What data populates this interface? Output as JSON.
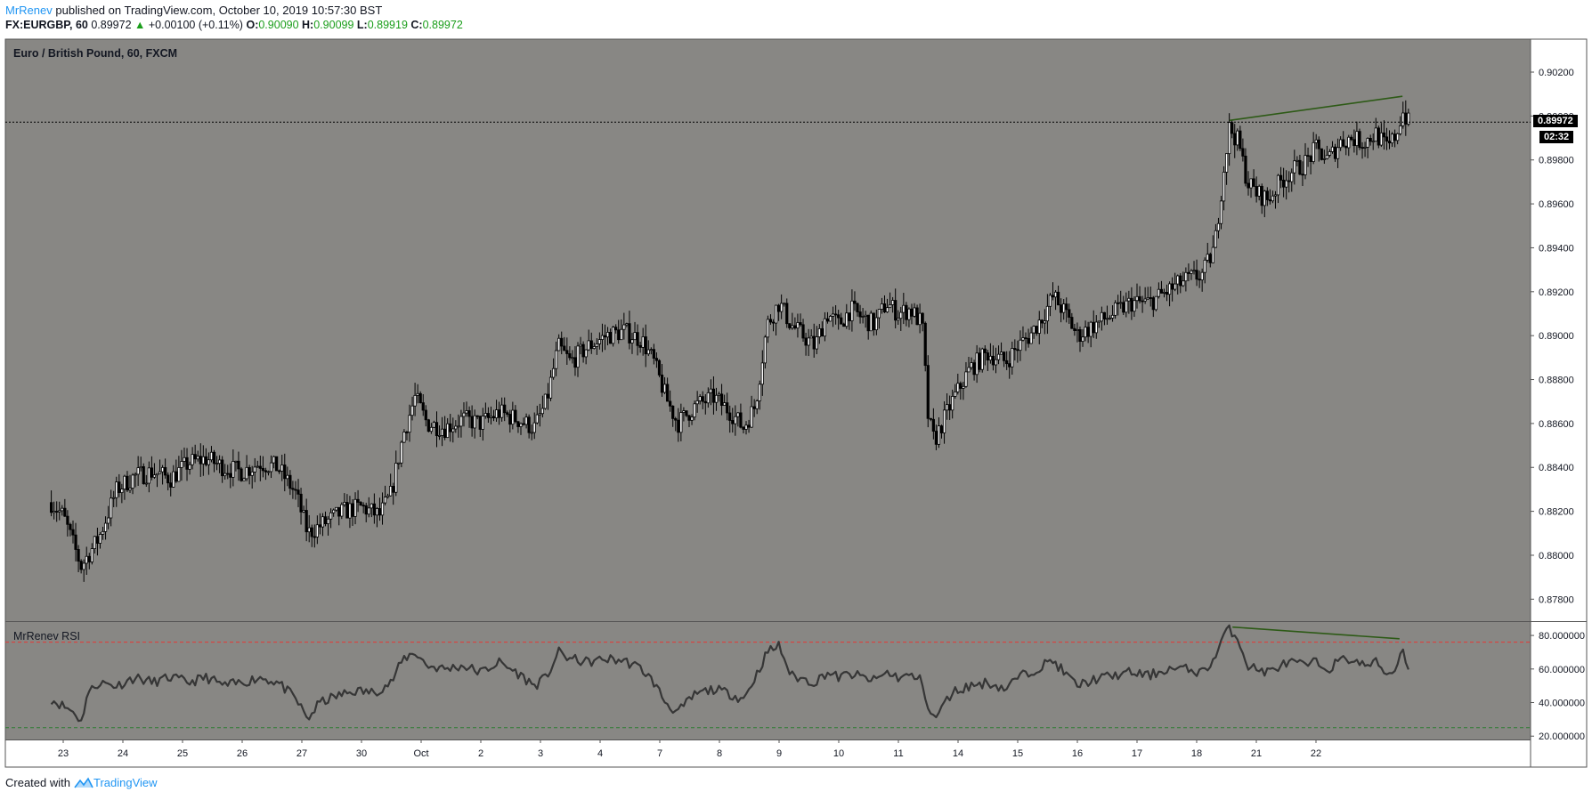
{
  "header": {
    "author": "MrRenev",
    "published_text": "published on TradingView.com, October 10, 2019 10:57:30 BST"
  },
  "quote": {
    "symbol": "FX:EURGBP, 60",
    "last": "0.89972",
    "arrow": "▲",
    "change": "+0.00100 (+0.11%)",
    "open_label": "O:",
    "open": "0.90090",
    "high_label": "H:",
    "high": "0.90099",
    "low_label": "L:",
    "low": "0.89919",
    "close_label": "C:",
    "close": "0.89972"
  },
  "main_pane": {
    "title": "Euro / British Pound, 60, FXCM",
    "last_price_label": "0.89972",
    "countdown_label": "02:32"
  },
  "rsi_pane": {
    "title": "MrRenev RSI"
  },
  "footer": {
    "created_with": "Created with",
    "brand": "TradingView"
  },
  "colors": {
    "pane_background": "#888784",
    "candle": "#000000",
    "divergence_line": "#2d5a16",
    "rsi_line": "#363636",
    "overbought_line": "#e53935",
    "oversold_line": "#2e7d32",
    "brand_blue": "#2196f3"
  },
  "chart_data": [
    {
      "type": "candlestick",
      "title": "Euro / British Pound, 60, FXCM",
      "y_tick_labels": [
        "0.90200",
        "0.90000",
        "0.89800",
        "0.89600",
        "0.89400",
        "0.89200",
        "0.89000",
        "0.88800",
        "0.88600",
        "0.88400",
        "0.88200",
        "0.88000",
        "0.87800"
      ],
      "ylim": [
        0.877,
        0.9035
      ],
      "x_tick_labels": [
        "23",
        "24",
        "25",
        "26",
        "27",
        "30",
        "Oct",
        "2",
        "3",
        "4",
        "7",
        "8",
        "9",
        "10",
        "11",
        "14",
        "15",
        "16",
        "17",
        "18",
        "21",
        "22"
      ],
      "last_price": 0.89972,
      "series": [
        {
          "values": [
            [
              -0.2,
              0.8824
            ],
            [
              0.0,
              0.8818
            ],
            [
              0.3,
              0.8795
            ],
            [
              0.6,
              0.8808
            ],
            [
              0.9,
              0.883
            ],
            [
              1.2,
              0.8836
            ],
            [
              1.5,
              0.8838
            ],
            [
              1.8,
              0.8835
            ],
            [
              2.1,
              0.8842
            ],
            [
              2.4,
              0.8844
            ],
            [
              2.7,
              0.884
            ],
            [
              3.0,
              0.8838
            ],
            [
              3.3,
              0.8842
            ],
            [
              3.6,
              0.884
            ],
            [
              3.9,
              0.8828
            ],
            [
              4.1,
              0.881
            ],
            [
              4.4,
              0.8815
            ],
            [
              4.7,
              0.882
            ],
            [
              5.0,
              0.8822
            ],
            [
              5.3,
              0.8818
            ],
            [
              5.5,
              0.8828
            ],
            [
              5.7,
              0.8855
            ],
            [
              5.9,
              0.8872
            ],
            [
              6.1,
              0.886
            ],
            [
              6.4,
              0.8858
            ],
            [
              6.7,
              0.8862
            ],
            [
              7.0,
              0.886
            ],
            [
              7.3,
              0.8865
            ],
            [
              7.6,
              0.8862
            ],
            [
              7.9,
              0.8858
            ],
            [
              8.1,
              0.887
            ],
            [
              8.3,
              0.8895
            ],
            [
              8.5,
              0.8888
            ],
            [
              8.8,
              0.8895
            ],
            [
              9.1,
              0.89
            ],
            [
              9.4,
              0.8902
            ],
            [
              9.7,
              0.8898
            ],
            [
              9.9,
              0.8888
            ],
            [
              10.1,
              0.8872
            ],
            [
              10.3,
              0.886
            ],
            [
              10.6,
              0.8868
            ],
            [
              10.9,
              0.8872
            ],
            [
              11.2,
              0.8865
            ],
            [
              11.4,
              0.8858
            ],
            [
              11.6,
              0.8868
            ],
            [
              11.8,
              0.8905
            ],
            [
              12.0,
              0.8915
            ],
            [
              12.2,
              0.8905
            ],
            [
              12.4,
              0.89
            ],
            [
              12.6,
              0.8895
            ],
            [
              12.8,
              0.891
            ],
            [
              13.0,
              0.8905
            ],
            [
              13.2,
              0.8912
            ],
            [
              13.4,
              0.8908
            ],
            [
              13.6,
              0.8905
            ],
            [
              13.8,
              0.8915
            ],
            [
              14.0,
              0.891
            ],
            [
              14.2,
              0.8912
            ],
            [
              14.4,
              0.8905
            ],
            [
              14.5,
              0.8862
            ],
            [
              14.6,
              0.8852
            ],
            [
              14.9,
              0.887
            ],
            [
              15.2,
              0.8885
            ],
            [
              15.5,
              0.8892
            ],
            [
              15.8,
              0.8888
            ],
            [
              16.0,
              0.8895
            ],
            [
              16.2,
              0.89
            ],
            [
              16.4,
              0.8908
            ],
            [
              16.6,
              0.8918
            ],
            [
              16.8,
              0.891
            ],
            [
              17.0,
              0.89
            ],
            [
              17.3,
              0.8905
            ],
            [
              17.6,
              0.891
            ],
            [
              17.9,
              0.8915
            ],
            [
              18.2,
              0.8915
            ],
            [
              18.5,
              0.892
            ],
            [
              18.8,
              0.8925
            ],
            [
              19.1,
              0.8928
            ],
            [
              19.3,
              0.894
            ],
            [
              19.45,
              0.8975
            ],
            [
              19.55,
              0.8995
            ],
            [
              19.7,
              0.8988
            ],
            [
              19.85,
              0.897
            ],
            [
              20.0,
              0.8965
            ],
            [
              20.2,
              0.8962
            ],
            [
              20.4,
              0.897
            ],
            [
              20.6,
              0.8975
            ],
            [
              20.8,
              0.8978
            ],
            [
              21.0,
              0.8985
            ],
            [
              21.2,
              0.898
            ],
            [
              21.4,
              0.8988
            ],
            [
              21.6,
              0.899
            ],
            [
              21.8,
              0.8988
            ],
            [
              22.0,
              0.8992
            ],
            [
              22.2,
              0.8985
            ],
            [
              22.35,
              0.8992
            ],
            [
              22.45,
              0.9002
            ],
            [
              22.55,
              0.8997
            ]
          ]
        }
      ],
      "annotations": [
        {
          "type": "trendline",
          "from": [
            19.55,
            0.8998
          ],
          "to": [
            22.45,
            0.9009
          ]
        }
      ]
    },
    {
      "type": "line",
      "title": "MrRenev RSI",
      "y_tick_labels": [
        "80.000000",
        "60.000000",
        "40.000000",
        "20.000000"
      ],
      "ylim": [
        18,
        88
      ],
      "levels": [
        76,
        25
      ],
      "series": [
        {
          "values": [
            [
              -0.2,
              42
            ],
            [
              0.0,
              38
            ],
            [
              0.2,
              34
            ],
            [
              0.3,
              28
            ],
            [
              0.4,
              45
            ],
            [
              0.6,
              52
            ],
            [
              0.9,
              50
            ],
            [
              1.2,
              55
            ],
            [
              1.5,
              52
            ],
            [
              1.8,
              55
            ],
            [
              2.1,
              52
            ],
            [
              2.4,
              55
            ],
            [
              2.7,
              50
            ],
            [
              3.0,
              52
            ],
            [
              3.3,
              55
            ],
            [
              3.6,
              52
            ],
            [
              3.9,
              42
            ],
            [
              4.1,
              30
            ],
            [
              4.3,
              40
            ],
            [
              4.6,
              44
            ],
            [
              4.9,
              47
            ],
            [
              5.2,
              46
            ],
            [
              5.5,
              52
            ],
            [
              5.7,
              66
            ],
            [
              5.9,
              70
            ],
            [
              6.1,
              62
            ],
            [
              6.4,
              60
            ],
            [
              6.7,
              62
            ],
            [
              7.0,
              58
            ],
            [
              7.3,
              64
            ],
            [
              7.6,
              58
            ],
            [
              7.9,
              50
            ],
            [
              8.1,
              55
            ],
            [
              8.3,
              70
            ],
            [
              8.5,
              66
            ],
            [
              8.8,
              64
            ],
            [
              9.1,
              66
            ],
            [
              9.4,
              65
            ],
            [
              9.7,
              60
            ],
            [
              9.9,
              52
            ],
            [
              10.1,
              40
            ],
            [
              10.3,
              34
            ],
            [
              10.6,
              45
            ],
            [
              10.9,
              48
            ],
            [
              11.2,
              45
            ],
            [
              11.4,
              42
            ],
            [
              11.6,
              55
            ],
            [
              11.8,
              70
            ],
            [
              12.0,
              74
            ],
            [
              12.2,
              56
            ],
            [
              12.4,
              54
            ],
            [
              12.6,
              52
            ],
            [
              12.8,
              58
            ],
            [
              13.0,
              55
            ],
            [
              13.2,
              57
            ],
            [
              13.4,
              55
            ],
            [
              13.6,
              53
            ],
            [
              13.8,
              58
            ],
            [
              14.0,
              55
            ],
            [
              14.2,
              56
            ],
            [
              14.4,
              53
            ],
            [
              14.5,
              36
            ],
            [
              14.6,
              30
            ],
            [
              14.9,
              46
            ],
            [
              15.2,
              50
            ],
            [
              15.5,
              52
            ],
            [
              15.8,
              48
            ],
            [
              16.0,
              55
            ],
            [
              16.2,
              58
            ],
            [
              16.4,
              62
            ],
            [
              16.6,
              65
            ],
            [
              16.8,
              57
            ],
            [
              17.0,
              50
            ],
            [
              17.3,
              54
            ],
            [
              17.6,
              56
            ],
            [
              17.9,
              58
            ],
            [
              18.2,
              56
            ],
            [
              18.5,
              60
            ],
            [
              18.8,
              60
            ],
            [
              19.1,
              58
            ],
            [
              19.3,
              66
            ],
            [
              19.45,
              80
            ],
            [
              19.55,
              84
            ],
            [
              19.7,
              78
            ],
            [
              19.85,
              62
            ],
            [
              20.0,
              60
            ],
            [
              20.2,
              58
            ],
            [
              20.4,
              62
            ],
            [
              20.6,
              64
            ],
            [
              20.8,
              62
            ],
            [
              21.0,
              64
            ],
            [
              21.2,
              60
            ],
            [
              21.4,
              65
            ],
            [
              21.6,
              66
            ],
            [
              21.8,
              62
            ],
            [
              22.0,
              64
            ],
            [
              22.2,
              57
            ],
            [
              22.35,
              60
            ],
            [
              22.45,
              75
            ],
            [
              22.55,
              58
            ]
          ]
        }
      ],
      "annotations": [
        {
          "type": "trendline",
          "from": [
            19.6,
            85
          ],
          "to": [
            22.4,
            78
          ]
        }
      ]
    }
  ]
}
